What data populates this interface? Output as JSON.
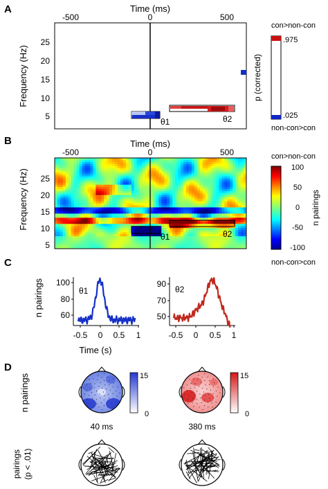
{
  "panels": {
    "A": {
      "letter": "A",
      "title": "Time (ms)",
      "xticks": [
        "-500",
        "0",
        "500"
      ],
      "ylabel": "Frequency (Hz)",
      "yticks": [
        "25",
        "20",
        "15",
        "10",
        "5"
      ],
      "markers": [
        "θ1",
        "θ2"
      ],
      "colorbar": {
        "top_label": "con>non-con",
        "bottom_label": "non-con>con",
        "axis_label": "p (corrected)",
        "top_tick": ".975",
        "bottom_tick": ".025",
        "top_color": "#cc1010",
        "bottom_color": "#1028c8"
      }
    },
    "B": {
      "letter": "B",
      "title": "Time (ms)",
      "xticks": [
        "-500",
        "0",
        "500"
      ],
      "ylabel": "Frequency (Hz)",
      "yticks": [
        "25",
        "20",
        "15",
        "10",
        "5"
      ],
      "markers": [
        "θ1",
        "θ2"
      ],
      "colorbar": {
        "top_label": "con>non-con",
        "bottom_label": "non-con>con",
        "axis_label": "n pairings",
        "ticks": [
          "100",
          "50",
          "0",
          "-50",
          "-100"
        ]
      }
    },
    "C": {
      "letter": "C",
      "ylabel": "n pairings",
      "xlabel": "Time (s)",
      "left": {
        "marker": "θ1",
        "yticks": [
          "100",
          "80",
          "60"
        ],
        "xticks": [
          "-0.5",
          "0",
          "0.5",
          "1"
        ],
        "color": "#1530c8"
      },
      "right": {
        "marker": "θ2",
        "yticks": [
          "90",
          "70",
          "50"
        ],
        "xticks": [
          "-0.5",
          "0",
          "0.5",
          "1"
        ],
        "color": "#c0281e"
      }
    },
    "D": {
      "letter": "D",
      "row1_ylabel": "n pairings",
      "row2_ylabel": "pairings (p < .01)",
      "row2_ylabel_line1": "pairings",
      "row2_ylabel_line2": "(p < .01)",
      "left": {
        "caption": "40 ms",
        "cbar_max": "15",
        "cbar_min": "0",
        "color": "#2438d0"
      },
      "right": {
        "caption": "380 ms",
        "cbar_max": "15",
        "cbar_min": "0",
        "color": "#d41818"
      }
    }
  }
}
